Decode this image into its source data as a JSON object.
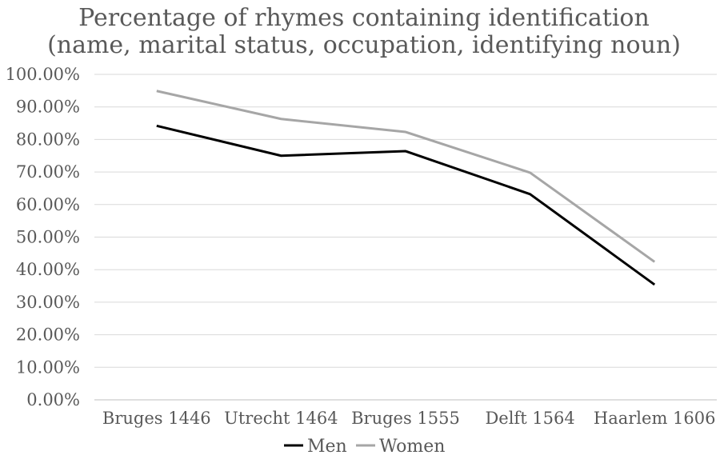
{
  "chart_data": {
    "type": "line",
    "title": "Percentage of rhymes containing identification",
    "subtitle": "(name, marital status, occupation, identifying noun)",
    "categories": [
      "Bruges 1446",
      "Utrecht 1464",
      "Bruges 1555",
      "Delft 1564",
      "Haarlem 1606"
    ],
    "series": [
      {
        "name": "Men",
        "values": [
          84.2,
          75.0,
          76.4,
          63.2,
          35.4
        ],
        "color": "#000000"
      },
      {
        "name": "Women",
        "values": [
          94.9,
          86.3,
          82.3,
          69.8,
          42.4
        ],
        "color": "#a6a6a6"
      }
    ],
    "ylim": [
      0,
      100
    ],
    "yticks": [
      "0.00%",
      "10.00%",
      "20.00%",
      "30.00%",
      "40.00%",
      "50.00%",
      "60.00%",
      "70.00%",
      "80.00%",
      "90.00%",
      "100.00%"
    ],
    "xlabel": "",
    "ylabel": "",
    "grid": true,
    "legend": "bottom-center"
  }
}
